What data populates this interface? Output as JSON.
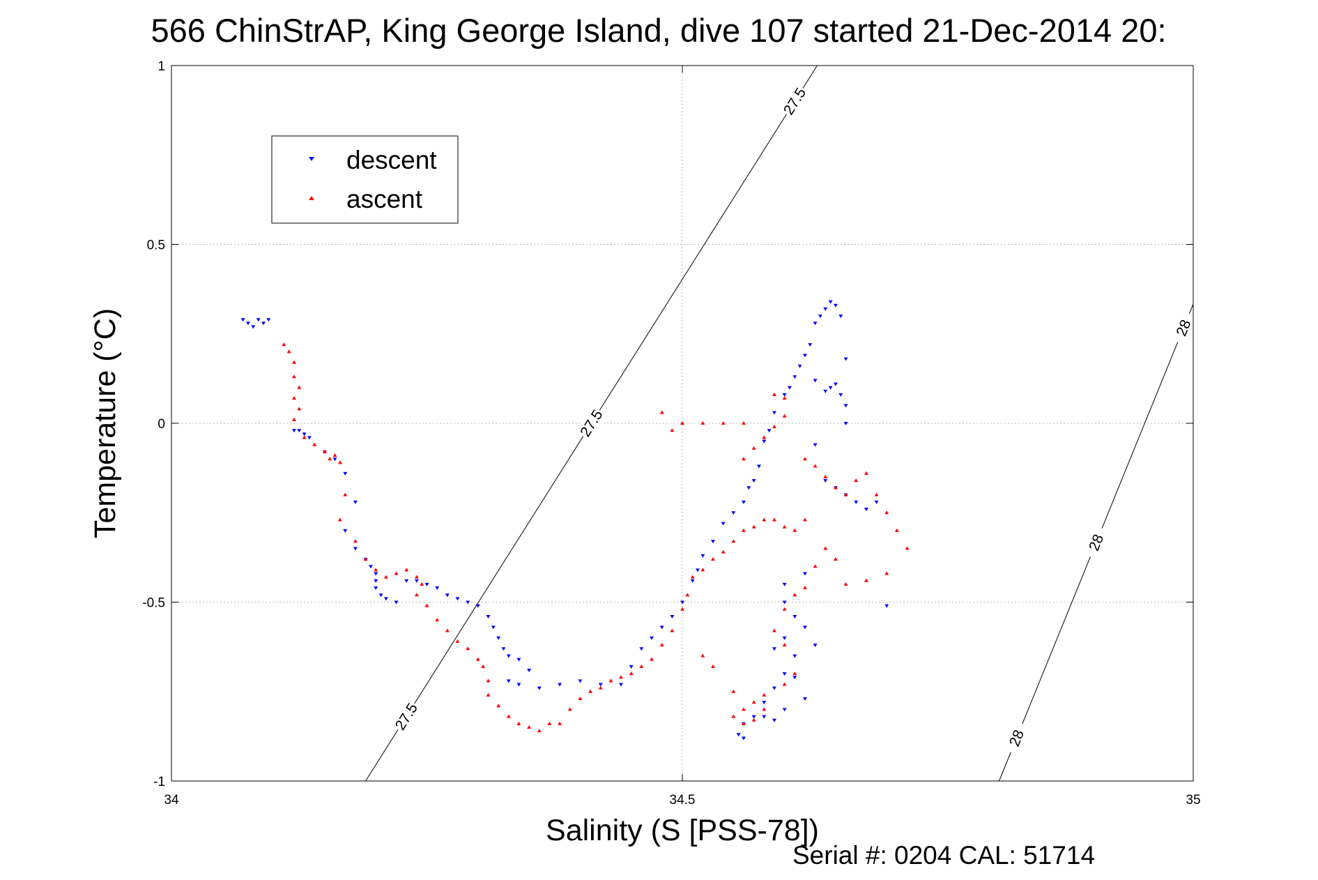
{
  "chart_data": {
    "type": "scatter",
    "title": "566 ChinStrAP, King George Island, dive 107 started 21-Dec-2014 20:",
    "xlabel": "Salinity (S [PSS-78])",
    "ylabel": "Temperature (°C)",
    "xlim": [
      34,
      35
    ],
    "ylim": [
      -1,
      1
    ],
    "x_ticks": [
      34,
      34.5,
      35
    ],
    "x_tick_labels": [
      "34",
      "34.5",
      "35"
    ],
    "y_ticks": [
      -1,
      -0.5,
      0,
      0.5,
      1
    ],
    "y_tick_labels": [
      "-1",
      "-0.5",
      "0",
      "0.5",
      "1"
    ],
    "grid": true,
    "legend_position": "top-left",
    "series": [
      {
        "name": "descent",
        "color": "#0000ff",
        "marker": "triangle-down",
        "points": [
          [
            34.07,
            0.29
          ],
          [
            34.075,
            0.28
          ],
          [
            34.08,
            0.27
          ],
          [
            34.085,
            0.29
          ],
          [
            34.09,
            0.28
          ],
          [
            34.095,
            0.29
          ],
          [
            34.12,
            -0.02
          ],
          [
            34.125,
            -0.02
          ],
          [
            34.13,
            -0.03
          ],
          [
            34.135,
            -0.04
          ],
          [
            34.15,
            -0.08
          ],
          [
            34.16,
            -0.1
          ],
          [
            34.17,
            -0.14
          ],
          [
            34.18,
            -0.22
          ],
          [
            34.17,
            -0.3
          ],
          [
            34.18,
            -0.35
          ],
          [
            34.19,
            -0.38
          ],
          [
            34.195,
            -0.4
          ],
          [
            34.2,
            -0.42
          ],
          [
            34.2,
            -0.44
          ],
          [
            34.2,
            -0.46
          ],
          [
            34.205,
            -0.48
          ],
          [
            34.21,
            -0.49
          ],
          [
            34.22,
            -0.5
          ],
          [
            34.23,
            -0.44
          ],
          [
            34.24,
            -0.44
          ],
          [
            34.25,
            -0.45
          ],
          [
            34.26,
            -0.46
          ],
          [
            34.27,
            -0.48
          ],
          [
            34.28,
            -0.49
          ],
          [
            34.29,
            -0.5
          ],
          [
            34.3,
            -0.51
          ],
          [
            34.31,
            -0.54
          ],
          [
            34.315,
            -0.57
          ],
          [
            34.32,
            -0.6
          ],
          [
            34.325,
            -0.63
          ],
          [
            34.33,
            -0.65
          ],
          [
            34.34,
            -0.66
          ],
          [
            34.35,
            -0.69
          ],
          [
            34.33,
            -0.72
          ],
          [
            34.34,
            -0.73
          ],
          [
            34.36,
            -0.74
          ],
          [
            34.38,
            -0.73
          ],
          [
            34.4,
            -0.72
          ],
          [
            34.42,
            -0.73
          ],
          [
            34.44,
            -0.73
          ],
          [
            34.45,
            -0.68
          ],
          [
            34.46,
            -0.63
          ],
          [
            34.47,
            -0.6
          ],
          [
            34.48,
            -0.57
          ],
          [
            34.49,
            -0.54
          ],
          [
            34.5,
            -0.5
          ],
          [
            34.51,
            -0.44
          ],
          [
            34.515,
            -0.41
          ],
          [
            34.52,
            -0.37
          ],
          [
            34.53,
            -0.33
          ],
          [
            34.54,
            -0.28
          ],
          [
            34.55,
            -0.25
          ],
          [
            34.56,
            -0.22
          ],
          [
            34.565,
            -0.18
          ],
          [
            34.57,
            -0.16
          ],
          [
            34.575,
            -0.12
          ],
          [
            34.58,
            -0.05
          ],
          [
            34.585,
            -0.02
          ],
          [
            34.59,
            0.03
          ],
          [
            34.6,
            0.08
          ],
          [
            34.605,
            0.1
          ],
          [
            34.61,
            0.13
          ],
          [
            34.615,
            0.16
          ],
          [
            34.62,
            0.19
          ],
          [
            34.625,
            0.22
          ],
          [
            34.63,
            0.28
          ],
          [
            34.635,
            0.3
          ],
          [
            34.64,
            0.32
          ],
          [
            34.645,
            0.34
          ],
          [
            34.65,
            0.33
          ],
          [
            34.655,
            0.3
          ],
          [
            34.66,
            0.18
          ],
          [
            34.63,
            0.12
          ],
          [
            34.64,
            0.09
          ],
          [
            34.645,
            0.1
          ],
          [
            34.65,
            0.11
          ],
          [
            34.655,
            0.08
          ],
          [
            34.66,
            0.05
          ],
          [
            34.64,
            -0.16
          ],
          [
            34.65,
            -0.18
          ],
          [
            34.66,
            -0.2
          ],
          [
            34.67,
            -0.22
          ],
          [
            34.68,
            -0.24
          ],
          [
            34.69,
            -0.22
          ],
          [
            34.63,
            -0.06
          ],
          [
            34.66,
            -0.0
          ],
          [
            34.7,
            -0.51
          ],
          [
            34.62,
            -0.42
          ],
          [
            34.6,
            -0.45
          ],
          [
            34.6,
            -0.5
          ],
          [
            34.61,
            -0.54
          ],
          [
            34.6,
            -0.6
          ],
          [
            34.59,
            -0.63
          ],
          [
            34.61,
            -0.65
          ],
          [
            34.6,
            -0.7
          ],
          [
            34.59,
            -0.74
          ],
          [
            34.58,
            -0.78
          ],
          [
            34.57,
            -0.82
          ],
          [
            34.56,
            -0.84
          ],
          [
            34.555,
            -0.87
          ],
          [
            34.56,
            -0.88
          ],
          [
            34.58,
            -0.82
          ],
          [
            34.62,
            -0.57
          ],
          [
            34.63,
            -0.62
          ],
          [
            34.61,
            -0.71
          ],
          [
            34.62,
            -0.77
          ],
          [
            34.6,
            -0.8
          ],
          [
            34.59,
            -0.83
          ]
        ]
      },
      {
        "name": "ascent",
        "color": "#ff0000",
        "marker": "triangle-up",
        "points": [
          [
            34.11,
            0.22
          ],
          [
            34.115,
            0.2
          ],
          [
            34.12,
            0.17
          ],
          [
            34.12,
            0.13
          ],
          [
            34.125,
            0.1
          ],
          [
            34.12,
            0.07
          ],
          [
            34.125,
            0.04
          ],
          [
            34.12,
            0.01
          ],
          [
            34.13,
            -0.04
          ],
          [
            34.14,
            -0.06
          ],
          [
            34.15,
            -0.08
          ],
          [
            34.155,
            -0.1
          ],
          [
            34.16,
            -0.09
          ],
          [
            34.165,
            -0.11
          ],
          [
            34.17,
            -0.2
          ],
          [
            34.165,
            -0.27
          ],
          [
            34.18,
            -0.33
          ],
          [
            34.19,
            -0.38
          ],
          [
            34.2,
            -0.41
          ],
          [
            34.21,
            -0.43
          ],
          [
            34.22,
            -0.42
          ],
          [
            34.23,
            -0.41
          ],
          [
            34.24,
            -0.43
          ],
          [
            34.245,
            -0.45
          ],
          [
            34.24,
            -0.48
          ],
          [
            34.25,
            -0.51
          ],
          [
            34.26,
            -0.55
          ],
          [
            34.27,
            -0.58
          ],
          [
            34.28,
            -0.61
          ],
          [
            34.29,
            -0.63
          ],
          [
            34.3,
            -0.66
          ],
          [
            34.305,
            -0.68
          ],
          [
            34.31,
            -0.72
          ],
          [
            34.31,
            -0.76
          ],
          [
            34.32,
            -0.79
          ],
          [
            34.33,
            -0.82
          ],
          [
            34.34,
            -0.84
          ],
          [
            34.35,
            -0.85
          ],
          [
            34.36,
            -0.86
          ],
          [
            34.37,
            -0.84
          ],
          [
            34.38,
            -0.84
          ],
          [
            34.39,
            -0.8
          ],
          [
            34.4,
            -0.77
          ],
          [
            34.41,
            -0.75
          ],
          [
            34.42,
            -0.74
          ],
          [
            34.43,
            -0.72
          ],
          [
            34.44,
            -0.71
          ],
          [
            34.45,
            -0.7
          ],
          [
            34.46,
            -0.68
          ],
          [
            34.47,
            -0.66
          ],
          [
            34.48,
            -0.62
          ],
          [
            34.49,
            -0.58
          ],
          [
            34.5,
            -0.52
          ],
          [
            34.505,
            -0.48
          ],
          [
            34.51,
            -0.43
          ],
          [
            34.52,
            -0.41
          ],
          [
            34.53,
            -0.38
          ],
          [
            34.54,
            -0.36
          ],
          [
            34.55,
            -0.33
          ],
          [
            34.56,
            -0.3
          ],
          [
            34.57,
            -0.29
          ],
          [
            34.58,
            -0.27
          ],
          [
            34.59,
            -0.27
          ],
          [
            34.6,
            -0.29
          ],
          [
            34.61,
            -0.3
          ],
          [
            34.62,
            -0.27
          ],
          [
            34.56,
            -0.1
          ],
          [
            34.57,
            -0.07
          ],
          [
            34.58,
            -0.04
          ],
          [
            34.59,
            -0.01
          ],
          [
            34.6,
            0.02
          ],
          [
            34.6,
            0.07
          ],
          [
            34.59,
            0.08
          ],
          [
            34.5,
            0.0
          ],
          [
            34.52,
            0.0
          ],
          [
            34.54,
            0.0
          ],
          [
            34.56,
            0.0
          ],
          [
            34.62,
            -0.1
          ],
          [
            34.63,
            -0.12
          ],
          [
            34.64,
            -0.15
          ],
          [
            34.65,
            -0.18
          ],
          [
            34.66,
            -0.2
          ],
          [
            34.67,
            -0.16
          ],
          [
            34.68,
            -0.14
          ],
          [
            34.69,
            -0.2
          ],
          [
            34.7,
            -0.25
          ],
          [
            34.71,
            -0.3
          ],
          [
            34.72,
            -0.35
          ],
          [
            34.7,
            -0.42
          ],
          [
            34.68,
            -0.44
          ],
          [
            34.66,
            -0.45
          ],
          [
            34.65,
            -0.38
          ],
          [
            34.64,
            -0.35
          ],
          [
            34.63,
            -0.4
          ],
          [
            34.62,
            -0.46
          ],
          [
            34.61,
            -0.48
          ],
          [
            34.6,
            -0.52
          ],
          [
            34.59,
            -0.58
          ],
          [
            34.6,
            -0.62
          ],
          [
            34.61,
            -0.7
          ],
          [
            34.6,
            -0.73
          ],
          [
            34.58,
            -0.76
          ],
          [
            34.57,
            -0.78
          ],
          [
            34.56,
            -0.8
          ],
          [
            34.55,
            -0.82
          ],
          [
            34.56,
            -0.84
          ],
          [
            34.57,
            -0.83
          ],
          [
            34.58,
            -0.8
          ],
          [
            34.52,
            -0.65
          ],
          [
            34.53,
            -0.68
          ],
          [
            34.55,
            -0.75
          ],
          [
            34.49,
            -0.02
          ],
          [
            34.48,
            0.03
          ]
        ]
      }
    ],
    "density_contours": [
      {
        "label": "27.5",
        "s0": 34.19,
        "s1": 34.632
      },
      {
        "label": "28",
        "s0": 34.81,
        "s1": 35.095
      }
    ],
    "footer": "Serial #: 0204  CAL: 51714"
  }
}
